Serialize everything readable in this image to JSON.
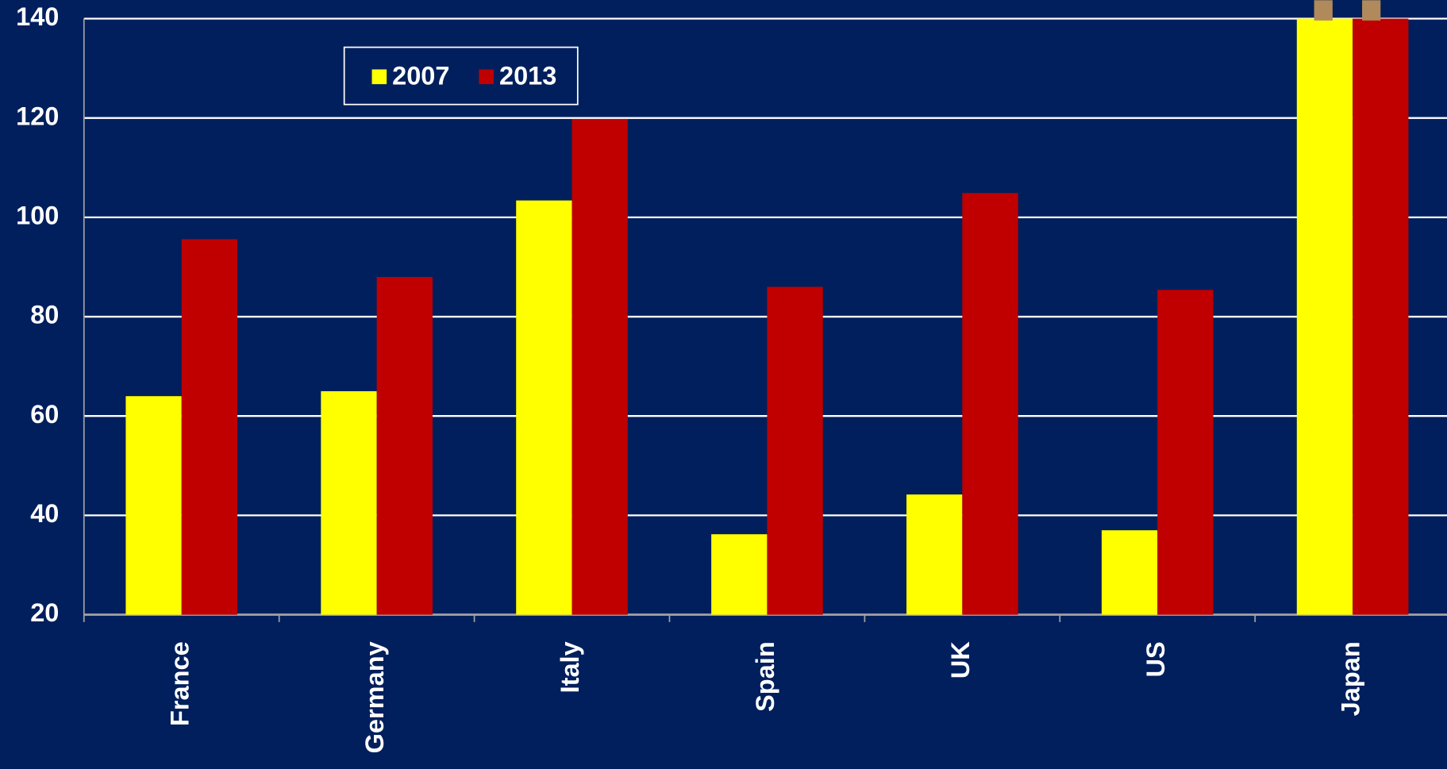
{
  "chart_data": {
    "type": "bar",
    "categories": [
      "France",
      "Germany",
      "Italy",
      "Spain",
      "UK",
      "US",
      "Japan"
    ],
    "series": [
      {
        "name": "2007",
        "color": "#ffff00",
        "values": [
          64,
          65,
          103.4,
          36.2,
          44.2,
          37,
          140
        ]
      },
      {
        "name": "2013",
        "color": "#c00000",
        "values": [
          95.6,
          88,
          119.8,
          86,
          104.9,
          85.4,
          140
        ]
      }
    ],
    "ylim": [
      20,
      140
    ],
    "yticks": [
      20,
      40,
      60,
      80,
      100,
      120,
      140
    ],
    "grid": true
  }
}
